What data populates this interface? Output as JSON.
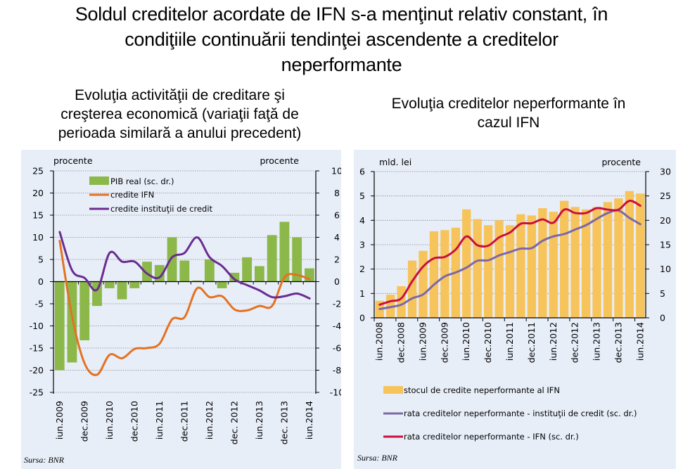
{
  "main_title": [
    "Soldul creditelor acordate de IFN s-a menţinut relativ constant, în",
    "condiţiile continuării tendinţei ascendente a creditelor",
    "neperformante"
  ],
  "chart_data": [
    {
      "type": "bar+line",
      "title": [
        "Evoluţia activităţii de creditare şi",
        "creşterea economică (variaţii faţă de",
        "perioada similară a anului precedent)"
      ],
      "left_axis_label": "procente",
      "right_axis_label": "procente",
      "ylim_left": [
        -25,
        25
      ],
      "yticks_left": [
        25,
        20,
        15,
        10,
        5,
        0,
        -5,
        -10,
        -15,
        -20,
        -25
      ],
      "ylim_right": [
        -10,
        10
      ],
      "yticks_right": [
        10,
        8,
        6,
        4,
        2,
        0,
        -2,
        -4,
        -6,
        -8,
        -10
      ],
      "x_tick_labels": [
        "iun.2009",
        "dec.2009",
        "iun.2010",
        "dec.2010",
        "iun.2011",
        "dec.2011",
        "iun.2012",
        "dec. 2012",
        "iun.2013",
        "dec. 2013",
        "iun.2014"
      ],
      "grid": true,
      "legend_position": "top-left",
      "source": "Sursa: BNR",
      "colors": {
        "bar": "#8cb84a",
        "ifn": "#e37222",
        "ic": "#6a2c91"
      },
      "series": [
        {
          "name": "PIB real (sc. dr.)",
          "kind": "bar",
          "axis": "right",
          "values": [
            -8.0,
            -7.3,
            -5.3,
            -2.2,
            -0.6,
            -1.6,
            -0.6,
            1.8,
            1.5,
            4.0,
            1.9,
            0.1,
            2.0,
            -0.6,
            0.8,
            2.2,
            1.4,
            4.2,
            5.4,
            4.0,
            1.2
          ]
        },
        {
          "name": "credite IFN",
          "kind": "line",
          "axis": "left",
          "values": [
            9.2,
            -8.0,
            -18.5,
            -21.0,
            -16.5,
            -17.3,
            -15.2,
            -15.0,
            -14.0,
            -8.5,
            -8.0,
            -1.5,
            -3.5,
            -3.3,
            -6.3,
            -6.5,
            -5.5,
            -5.5,
            1.0,
            1.5,
            0.5
          ]
        },
        {
          "name": "credite instituţii de credit",
          "kind": "line",
          "axis": "left",
          "values": [
            11.2,
            2.5,
            0.8,
            -1.8,
            6.5,
            4.5,
            4.5,
            1.8,
            1.0,
            5.5,
            6.5,
            10.0,
            5.5,
            3.5,
            0.5,
            -0.8,
            -2.0,
            -3.5,
            -3.3,
            -2.7,
            -3.8
          ]
        }
      ]
    },
    {
      "type": "bar+line",
      "title": [
        "Evoluţia creditelor neperformante în",
        "cazul IFN"
      ],
      "left_axis_label": "mld. lei",
      "right_axis_label": "procente",
      "ylim_left": [
        0,
        6
      ],
      "yticks_left": [
        6,
        5,
        4,
        3,
        2,
        1,
        0
      ],
      "ylim_right": [
        0,
        30
      ],
      "yticks_right": [
        30,
        25,
        20,
        15,
        10,
        5,
        0
      ],
      "x_tick_labels": [
        "iun.2008",
        "dec.2008",
        "iun.2009",
        "dec.2009",
        "iun.2010",
        "dec.2010",
        "iun.2011",
        "dec.2011",
        "iun.2012",
        "dec.2012",
        "iun.2013",
        "dec.2013",
        "iun.2014"
      ],
      "grid": true,
      "legend_position": "bottom",
      "source": "Sursa: BNR",
      "colors": {
        "bar": "#f7c45c",
        "ic": "#7b68a6",
        "ifn": "#c8103e"
      },
      "series": [
        {
          "name": "stocul de credite neperformante al IFN",
          "kind": "bar",
          "axis": "left",
          "values": [
            0.7,
            0.95,
            1.3,
            2.35,
            2.75,
            3.55,
            3.6,
            3.7,
            4.45,
            4.05,
            3.8,
            4.0,
            3.8,
            4.25,
            4.2,
            4.5,
            4.35,
            4.8,
            4.55,
            4.45,
            4.55,
            4.75,
            4.9,
            5.2,
            5.1
          ]
        },
        {
          "name": "rata creditelor neperformante - instituţii de credit (sc. dr.)",
          "kind": "line",
          "axis": "right",
          "values": [
            1.8,
            2.2,
            2.7,
            4.0,
            4.8,
            6.8,
            8.5,
            9.3,
            10.3,
            11.7,
            11.8,
            12.8,
            13.5,
            14.2,
            14.3,
            15.8,
            16.7,
            17.2,
            18.1,
            19.0,
            20.3,
            21.5,
            22.0,
            20.5,
            19.2
          ]
        },
        {
          "name": "rata creditelor neperformante - IFN (sc. dr.)",
          "kind": "line",
          "axis": "right",
          "values": [
            2.7,
            3.4,
            4.0,
            7.5,
            10.5,
            12.2,
            12.5,
            14.0,
            16.7,
            14.9,
            14.8,
            16.5,
            17.5,
            19.3,
            19.4,
            20.2,
            19.5,
            22.2,
            21.5,
            21.5,
            22.5,
            22.2,
            22.2,
            24.0,
            23.0
          ]
        }
      ]
    }
  ]
}
